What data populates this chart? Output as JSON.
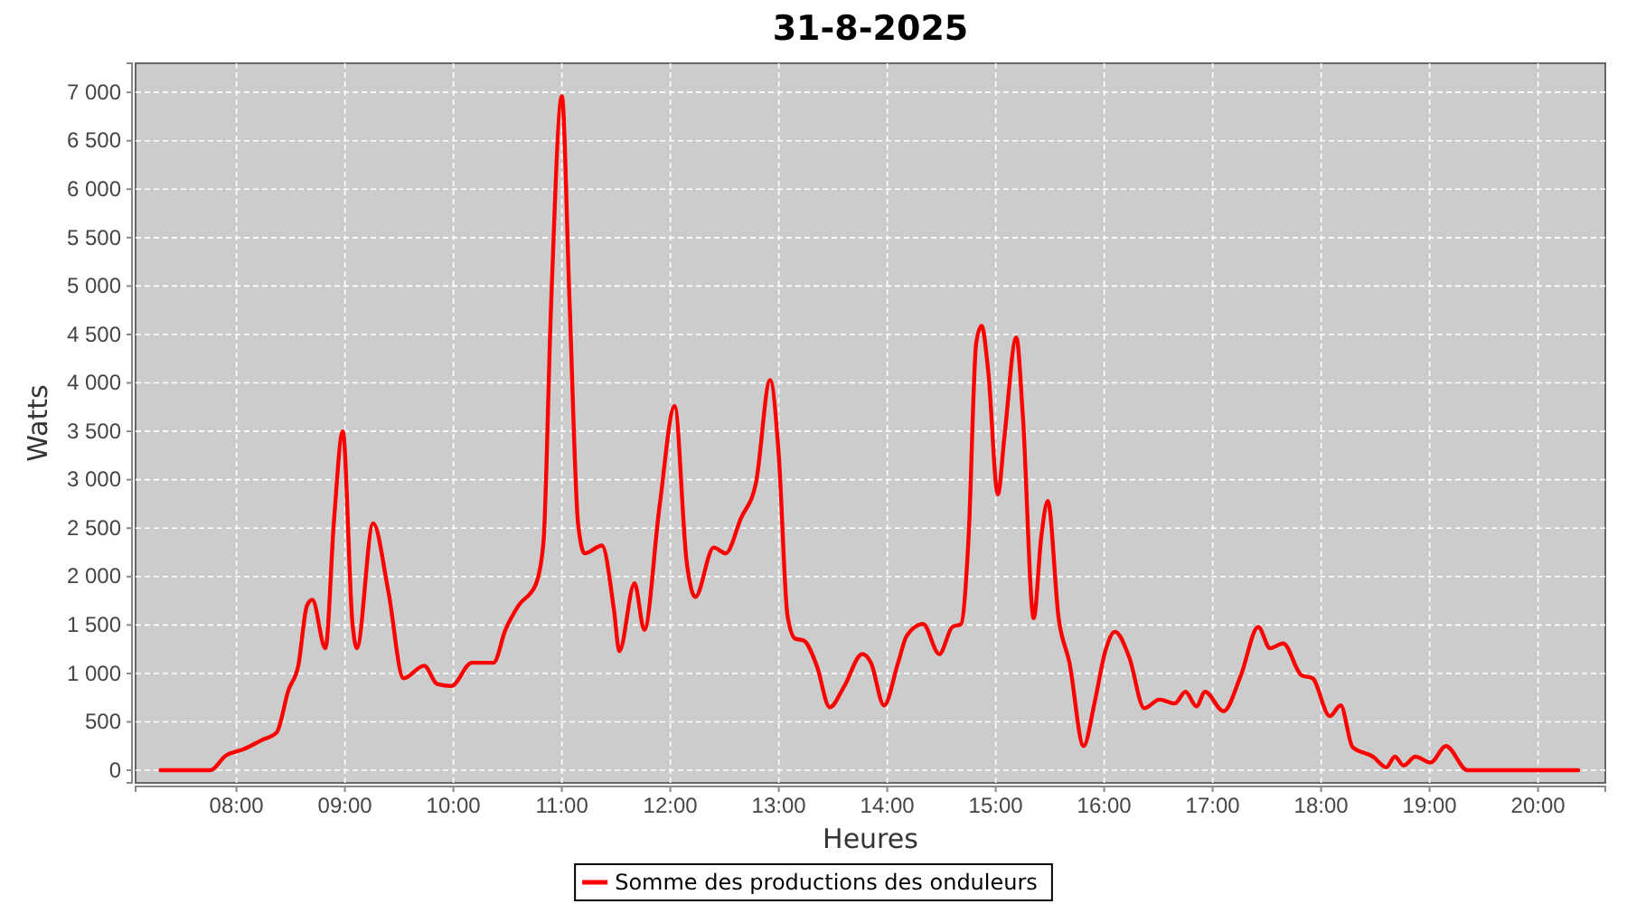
{
  "chart_data": {
    "type": "line",
    "title": "31-8-2025",
    "xlabel": "Heures",
    "ylabel": "Watts",
    "xlim": [
      7.07,
      20.62
    ],
    "ylim": [
      -130,
      7300
    ],
    "xticks": [
      {
        "value": 8,
        "label": "08:00"
      },
      {
        "value": 9,
        "label": "09:00"
      },
      {
        "value": 10,
        "label": "10:00"
      },
      {
        "value": 11,
        "label": "11:00"
      },
      {
        "value": 12,
        "label": "12:00"
      },
      {
        "value": 13,
        "label": "13:00"
      },
      {
        "value": 14,
        "label": "14:00"
      },
      {
        "value": 15,
        "label": "15:00"
      },
      {
        "value": 16,
        "label": "16:00"
      },
      {
        "value": 17,
        "label": "17:00"
      },
      {
        "value": 18,
        "label": "18:00"
      },
      {
        "value": 19,
        "label": "19:00"
      },
      {
        "value": 20,
        "label": "20:00"
      }
    ],
    "yticks": [
      0,
      500,
      {
        "value": 1000,
        "label": "1 000"
      },
      {
        "value": 1500,
        "label": "1 500"
      },
      {
        "value": 2000,
        "label": "2 000"
      },
      {
        "value": 2500,
        "label": "2 500"
      },
      {
        "value": 3000,
        "label": "3 000"
      },
      {
        "value": 3500,
        "label": "3 500"
      },
      {
        "value": 4000,
        "label": "4 000"
      },
      {
        "value": 4500,
        "label": "4 500"
      },
      {
        "value": 5000,
        "label": "5 000"
      },
      {
        "value": 5500,
        "label": "5 500"
      },
      {
        "value": 6000,
        "label": "6 000"
      },
      {
        "value": 6500,
        "label": "6 500"
      },
      {
        "value": 7000,
        "label": "7 000"
      }
    ],
    "grid": true,
    "legend": "bottom",
    "line_style": "solid",
    "series": [
      {
        "name": "Somme des productions des onduleurs",
        "color": "#ff0000",
        "x": [
          7.3,
          7.76,
          7.9,
          8.07,
          8.23,
          8.37,
          8.48,
          8.57,
          8.65,
          8.7,
          8.82,
          8.9,
          8.98,
          9.07,
          9.11,
          9.26,
          9.4,
          9.54,
          9.73,
          9.85,
          9.98,
          10.17,
          10.37,
          10.48,
          10.6,
          10.76,
          10.83,
          10.9,
          11.0,
          11.07,
          11.15,
          11.21,
          11.37,
          11.48,
          11.53,
          11.67,
          11.76,
          11.9,
          12.04,
          12.15,
          12.23,
          12.4,
          12.51,
          12.65,
          12.79,
          12.92,
          13.0,
          13.08,
          13.15,
          13.23,
          13.35,
          13.47,
          13.6,
          13.77,
          13.85,
          13.97,
          14.1,
          14.18,
          14.33,
          14.48,
          14.6,
          14.68,
          14.75,
          14.82,
          14.87,
          14.93,
          15.02,
          15.08,
          15.19,
          15.25,
          15.35,
          15.42,
          15.48,
          15.58,
          15.68,
          15.81,
          15.91,
          16.01,
          16.1,
          16.23,
          16.37,
          16.51,
          16.65,
          16.75,
          16.85,
          16.93,
          17.1,
          17.26,
          17.42,
          17.53,
          17.65,
          17.82,
          17.92,
          18.08,
          18.18,
          18.29,
          18.48,
          18.6,
          18.68,
          18.76,
          18.87,
          19.01,
          19.15,
          19.35,
          20.37
        ],
        "values": [
          0,
          0,
          150,
          220,
          310,
          390,
          830,
          1080,
          1700,
          1760,
          1260,
          2590,
          3500,
          1510,
          1260,
          2550,
          1850,
          950,
          1080,
          890,
          870,
          1110,
          1110,
          1450,
          1700,
          1920,
          2350,
          4780,
          6960,
          4870,
          2540,
          2240,
          2320,
          1660,
          1230,
          1930,
          1450,
          2720,
          3760,
          2160,
          1790,
          2300,
          2240,
          2600,
          2970,
          4030,
          3250,
          1600,
          1360,
          1340,
          1080,
          650,
          860,
          1200,
          1110,
          670,
          1110,
          1390,
          1510,
          1200,
          1480,
          1510,
          2410,
          4410,
          4590,
          4130,
          2850,
          3440,
          4470,
          3660,
          1570,
          2410,
          2780,
          1570,
          1110,
          250,
          690,
          1230,
          1430,
          1170,
          640,
          730,
          690,
          810,
          660,
          810,
          610,
          980,
          1480,
          1260,
          1310,
          980,
          950,
          560,
          670,
          240,
          140,
          30,
          140,
          50,
          140,
          80,
          250,
          0,
          0
        ]
      }
    ]
  }
}
